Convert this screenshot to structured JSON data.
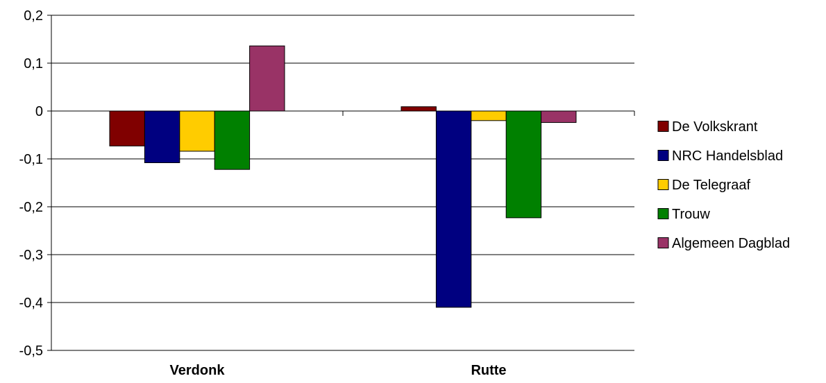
{
  "chart_data": {
    "type": "bar",
    "title": "",
    "xlabel": "",
    "ylabel": "",
    "categories": [
      "Verdonk",
      "Rutte"
    ],
    "series": [
      {
        "name": "De Volkskrant",
        "color": "#800000",
        "values": [
          -0.073,
          0.009
        ]
      },
      {
        "name": "NRC Handelsblad",
        "color": "#000080",
        "values": [
          -0.108,
          -0.41
        ]
      },
      {
        "name": "De Telegraaf",
        "color": "#FFCC00",
        "values": [
          -0.084,
          -0.02
        ]
      },
      {
        "name": "Trouw",
        "color": "#008000",
        "values": [
          -0.122,
          -0.223
        ]
      },
      {
        "name": "Algemeen Dagblad",
        "color": "#993366",
        "values": [
          0.136,
          -0.024
        ]
      }
    ],
    "ylim": [
      -0.5,
      0.2
    ],
    "yticks": [
      0.2,
      0.1,
      0,
      -0.1,
      -0.2,
      -0.3,
      -0.4,
      -0.5
    ],
    "ytick_labels": [
      "0,2",
      "0,1",
      "0",
      "-0,1",
      "-0,2",
      "-0,3",
      "-0,4",
      "-0,5"
    ],
    "grid": true,
    "legend_position": "right"
  }
}
